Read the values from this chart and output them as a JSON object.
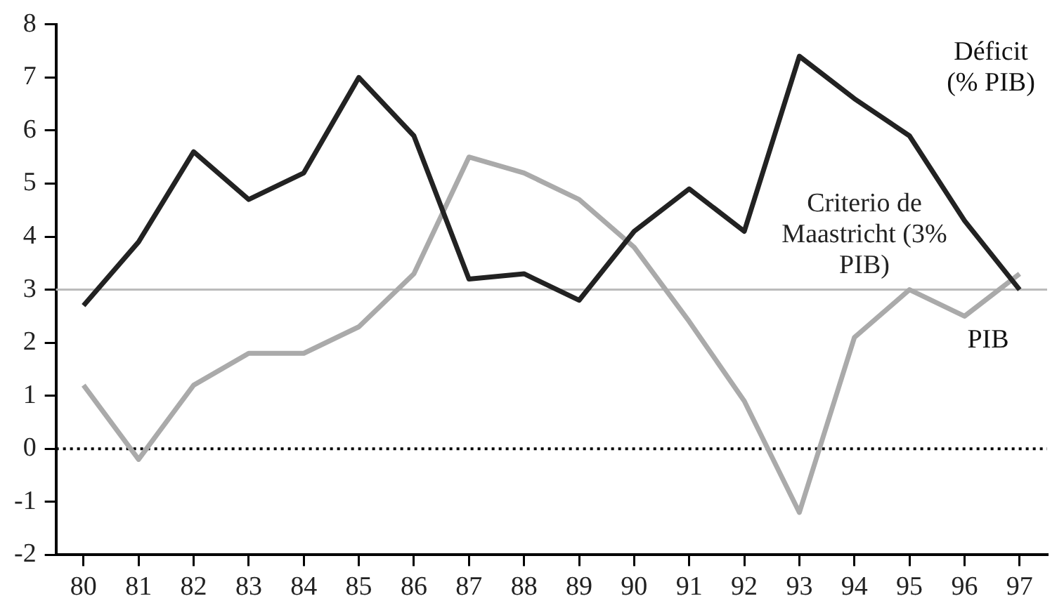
{
  "chart_data": {
    "type": "line",
    "categories": [
      "80",
      "81",
      "82",
      "83",
      "84",
      "85",
      "86",
      "87",
      "88",
      "89",
      "90",
      "91",
      "92",
      "93",
      "94",
      "95",
      "96",
      "97"
    ],
    "series": [
      {
        "name": "Déficit (% PIB)",
        "color": "#222222",
        "values": [
          2.7,
          3.9,
          5.6,
          4.7,
          5.2,
          7.0,
          5.9,
          3.2,
          3.3,
          2.8,
          4.1,
          4.9,
          4.1,
          7.4,
          6.6,
          5.9,
          4.3,
          3.0
        ]
      },
      {
        "name": "PIB",
        "color": "#aaaaaa",
        "values": [
          1.2,
          -0.2,
          1.2,
          1.8,
          1.8,
          2.3,
          3.3,
          5.5,
          5.2,
          4.7,
          3.8,
          2.4,
          0.9,
          -1.2,
          2.1,
          3.0,
          2.5,
          3.3
        ]
      }
    ],
    "ylim": [
      -2,
      8
    ],
    "yticks": [
      -2,
      -1,
      0,
      1,
      2,
      3,
      4,
      5,
      6,
      7,
      8
    ],
    "ref_lines": [
      {
        "axis": "y",
        "value": 3,
        "label": "Criterio de Maastricht (3% PIB)",
        "color": "#bbbbbb",
        "line_style": "solid"
      },
      {
        "axis": "y",
        "value": 0,
        "label": null,
        "color": "#000000",
        "line_style": "dotted"
      }
    ],
    "grid": false,
    "legend": false,
    "marker": "none",
    "line_style": "solid"
  }
}
